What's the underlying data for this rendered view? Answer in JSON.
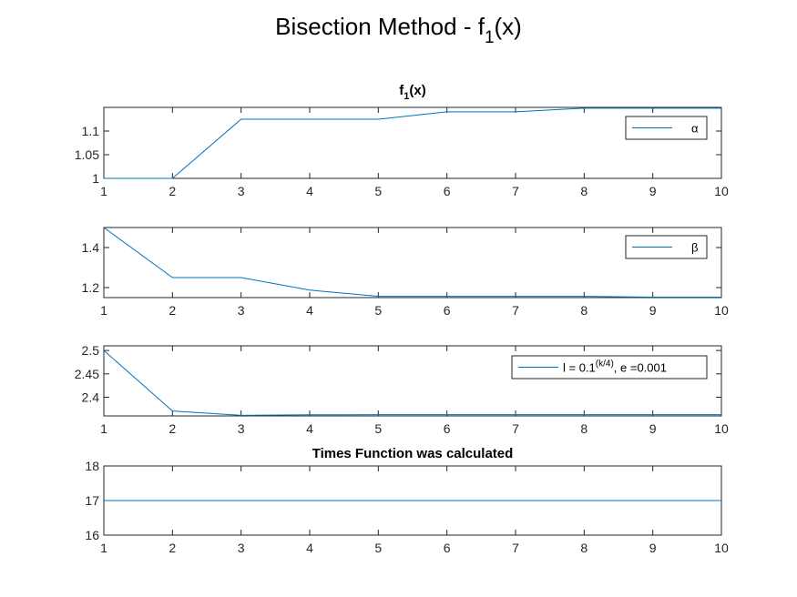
{
  "figure": {
    "title_main": "Bisection Method - f",
    "title_sub": "1",
    "title_tail": "(x)"
  },
  "colors": {
    "line": "#0072BD",
    "axis": "#262626"
  },
  "chart_data": [
    {
      "type": "line",
      "title": "f",
      "title_sub": "1",
      "title_tail": "(x)",
      "x": [
        1,
        2,
        3,
        4,
        5,
        6,
        7,
        8,
        9,
        10
      ],
      "series": [
        {
          "name": "α",
          "values": [
            1.0,
            1.0,
            1.125,
            1.125,
            1.125,
            1.1406,
            1.1406,
            1.1484,
            1.1484,
            1.1484
          ]
        }
      ],
      "xlim": [
        1,
        10
      ],
      "ylim": [
        1,
        1.15
      ],
      "xticks": [
        1,
        2,
        3,
        4,
        5,
        6,
        7,
        8,
        9,
        10
      ],
      "yticks": [
        1,
        1.05,
        1.1
      ],
      "ytick_labels": [
        "1",
        "1.05",
        "1.1"
      ],
      "legend": "top-right"
    },
    {
      "type": "line",
      "title": "",
      "x": [
        1,
        2,
        3,
        4,
        5,
        6,
        7,
        8,
        9,
        10
      ],
      "series": [
        {
          "name": "β",
          "values": [
            1.5,
            1.25,
            1.25,
            1.1875,
            1.1563,
            1.1563,
            1.1563,
            1.1563,
            1.1523,
            1.1523
          ]
        }
      ],
      "xlim": [
        1,
        10
      ],
      "ylim": [
        1.15,
        1.5
      ],
      "xticks": [
        1,
        2,
        3,
        4,
        5,
        6,
        7,
        8,
        9,
        10
      ],
      "yticks": [
        1.2,
        1.4
      ],
      "ytick_labels": [
        "1.2",
        "1.4"
      ],
      "legend": "top-right"
    },
    {
      "type": "line",
      "title": "",
      "x": [
        1,
        2,
        3,
        4,
        5,
        6,
        7,
        8,
        9,
        10
      ],
      "series": [
        {
          "name": "l = 0.1^(k/4), e =0.001",
          "values": [
            2.5,
            2.3705,
            2.3613,
            2.3625,
            2.3626,
            2.3626,
            2.3626,
            2.3626,
            2.3626,
            2.3626
          ]
        }
      ],
      "legend_parts": {
        "pre": "l = 0.1",
        "sup": "(k/4)",
        "post": ", e =0.001"
      },
      "xlim": [
        1,
        10
      ],
      "ylim": [
        2.36,
        2.51
      ],
      "xticks": [
        1,
        2,
        3,
        4,
        5,
        6,
        7,
        8,
        9,
        10
      ],
      "yticks": [
        2.4,
        2.45,
        2.5
      ],
      "ytick_labels": [
        "2.4",
        "2.45",
        "2.5"
      ],
      "legend": "top-right"
    },
    {
      "type": "line",
      "title": "Times Function was calculated",
      "x": [
        1,
        2,
        3,
        4,
        5,
        6,
        7,
        8,
        9,
        10
      ],
      "series": [
        {
          "values": [
            17,
            17,
            17,
            17,
            17,
            17,
            17,
            17,
            17,
            17
          ]
        }
      ],
      "xlim": [
        1,
        10
      ],
      "ylim": [
        16,
        18
      ],
      "xticks": [
        1,
        2,
        3,
        4,
        5,
        6,
        7,
        8,
        9,
        10
      ],
      "yticks": [
        16,
        17,
        18
      ],
      "ytick_labels": [
        "16",
        "17",
        "18"
      ],
      "legend": "none"
    }
  ]
}
